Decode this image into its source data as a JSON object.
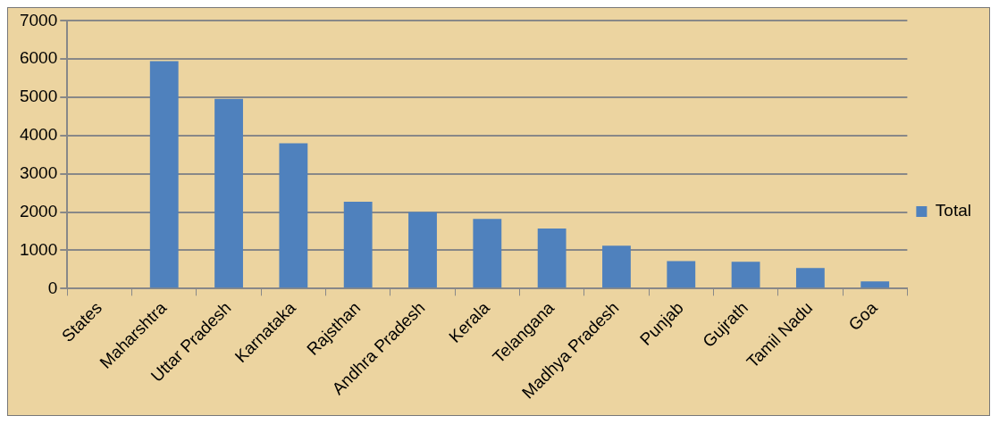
{
  "chart_data": {
    "type": "bar",
    "categories": [
      "States",
      "Maharshtra",
      "Uttar Pradesh",
      "Karnataka",
      "Rajsthan",
      "Andhra Pradesh",
      "Kerala",
      "Telangana",
      "Madhya Pradesh",
      "Punjab",
      "Gujrath",
      "Tamil Nadu",
      "Goa"
    ],
    "series": [
      {
        "name": "Total",
        "color": "#4f81bd",
        "values": [
          null,
          5950,
          4960,
          3800,
          2270,
          2000,
          1820,
          1570,
          1120,
          720,
          700,
          540,
          190
        ]
      }
    ],
    "ylim": [
      0,
      7000
    ],
    "yticks": [
      0,
      1000,
      2000,
      3000,
      4000,
      5000,
      6000,
      7000
    ],
    "grid": "y",
    "legend": "right"
  }
}
